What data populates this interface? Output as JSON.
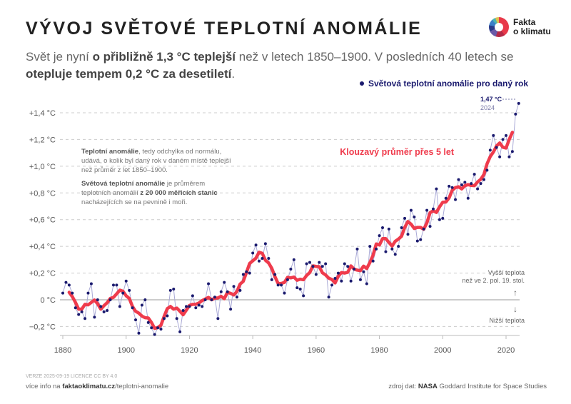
{
  "header": {
    "title": "VÝVOJ SVĚTOVÉ TEPLOTNÍ ANOMÁLIE",
    "subtitle_parts": [
      "Svět je nyní ",
      "o přibližně 1,3 °C teplejší",
      " než v letech 1850–1900. V posledních 40 letech se ",
      "otepluje tempem 0,2 °C za desetiletí",
      "."
    ],
    "logo_line1": "Fakta",
    "logo_line2": "o klimatu"
  },
  "note": {
    "p1_bold": "Teplotní anomálie",
    "p1_rest": ", tedy odchylka od normálu, udává, o kolik byl daný rok v daném místě teplejší než průměr z let 1850–1900.",
    "p2_bold": "Světová teplotní anomálie",
    "p2_mid": " je průměrem teplotních anomálií ",
    "p2_bold2": "z 20 000 měřicích stanic",
    "p2_rest": " nacházejících se na pevnině i moři."
  },
  "footer": {
    "version": "VERZE 2025-09-19    LICENCE CC BY 4.0",
    "more_prefix": "více info na ",
    "more_domain": "faktaoklimatu.cz",
    "more_path": "/teplotni-anomalie",
    "source_prefix": "zdroj dat: ",
    "source_bold": "NASA",
    "source_rest": " Goddard Institute for Space Studies"
  },
  "chart_data": {
    "type": "line",
    "title": "VÝVOJ SVĚTOVÉ TEPLOTNÍ ANOMÁLIE",
    "xlabel": "",
    "ylabel": "",
    "xlim": [
      1880,
      2024
    ],
    "ylim": [
      -0.2,
      1.4
    ],
    "grid": true,
    "x_ticks": [
      1880,
      1900,
      1920,
      1940,
      1960,
      1980,
      2000,
      2020
    ],
    "x_tick_labels": [
      "1880",
      "1900",
      "1920",
      "1940",
      "1960",
      "1980",
      "2000",
      "2020"
    ],
    "y_ticks": [
      -0.2,
      0,
      0.2,
      0.4,
      0.6,
      0.8,
      1.0,
      1.2,
      1.4
    ],
    "y_tick_labels": [
      "−0,2 °C",
      "0 °C",
      "+0,2 °C",
      "+0,4 °C",
      "+0,6 °C",
      "+0,8 °C",
      "+1,0 °C",
      "+1,2 °C",
      "+1,4 °C"
    ],
    "colors": {
      "annual": "#1a1a6e",
      "line": "#a9a9d6",
      "moving": "#ef3b4c"
    },
    "series": [
      {
        "name": "Světová teplotní anomálie pro daný rok",
        "x_start": 1880,
        "values": [
          0.05,
          0.13,
          0.11,
          0.05,
          -0.06,
          -0.11,
          -0.09,
          -0.14,
          0.05,
          0.12,
          -0.13,
          0.0,
          -0.05,
          -0.09,
          -0.08,
          0.0,
          0.11,
          0.11,
          -0.05,
          0.05,
          0.14,
          0.07,
          -0.06,
          -0.15,
          -0.25,
          -0.04,
          0.0,
          -0.17,
          -0.21,
          -0.26,
          -0.21,
          -0.22,
          -0.14,
          -0.12,
          0.07,
          0.08,
          -0.14,
          -0.24,
          -0.08,
          -0.05,
          -0.05,
          0.03,
          -0.06,
          -0.04,
          -0.05,
          0.0,
          0.12,
          0.0,
          0.02,
          -0.14,
          0.06,
          0.13,
          0.06,
          -0.07,
          0.1,
          0.02,
          0.07,
          0.19,
          0.21,
          0.2,
          0.35,
          0.41,
          0.29,
          0.31,
          0.42,
          0.31,
          0.15,
          0.19,
          0.11,
          0.11,
          0.05,
          0.15,
          0.23,
          0.3,
          0.09,
          0.08,
          0.03,
          0.27,
          0.28,
          0.25,
          0.19,
          0.28,
          0.25,
          0.27,
          0.02,
          0.11,
          0.16,
          0.2,
          0.14,
          0.27,
          0.25,
          0.14,
          0.23,
          0.38,
          0.15,
          0.21,
          0.12,
          0.4,
          0.29,
          0.38,
          0.48,
          0.54,
          0.36,
          0.53,
          0.38,
          0.34,
          0.4,
          0.54,
          0.61,
          0.49,
          0.67,
          0.62,
          0.44,
          0.45,
          0.53,
          0.67,
          0.55,
          0.68,
          0.83,
          0.6,
          0.61,
          0.76,
          0.85,
          0.84,
          0.75,
          0.9,
          0.86,
          0.88,
          0.76,
          0.87,
          0.94,
          0.83,
          0.87,
          0.9,
          0.97,
          1.12,
          1.23,
          1.14,
          1.07,
          1.2,
          1.23,
          1.07,
          1.11,
          1.39,
          1.47
        ]
      },
      {
        "name": "Klouzavý průměr přes 5 let",
        "window": 5
      }
    ],
    "annotations": {
      "last_value": "1,47 °C",
      "last_year": "2024",
      "moving_label": "Klouzavý průměr přes 5 let",
      "legend_annual": "Světová teplotní anomálie pro daný rok",
      "warmer_1": "Vyšší teplota",
      "warmer_2": "než ve 2. pol. 19. stol.",
      "cooler": "Nižší teplota"
    }
  }
}
